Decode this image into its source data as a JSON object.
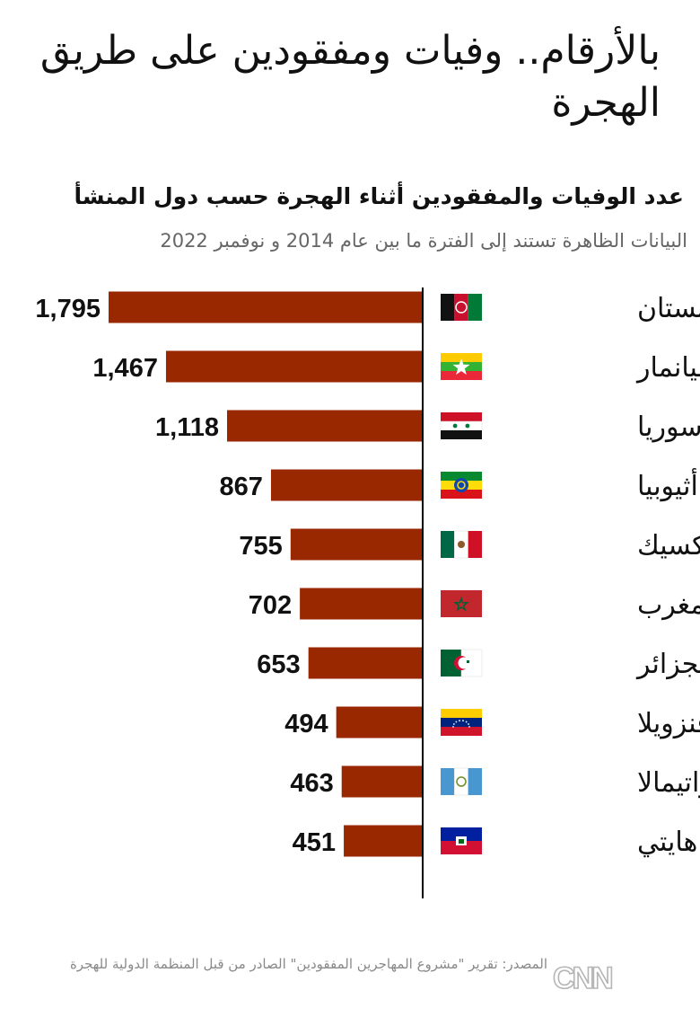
{
  "title": "بالأرقام.. وفيات ومفقودين على طريق الهجرة",
  "subtitle": "عدد الوفيات والمفقودين أثناء الهجرة حسب دول المنشأ",
  "note": "البيانات الظاهرة تستند إلى الفترة ما بين عام 2014 و نوفمبر 2022",
  "source": "المصدر: تقرير \"مشروع المهاجرين المفقودين\" الصادر من قبل المنظمة الدولية للهجرة",
  "logo": {
    "text": "CNN بالعربية",
    "icon": "cnn-arabic-logo-icon"
  },
  "colors": {
    "bar": "#992800",
    "axis": "#000000",
    "text": "#111111",
    "muted": "#8a8a8a"
  },
  "chart_data": {
    "type": "bar",
    "orientation": "horizontal",
    "categories": [
      "أفغانستان",
      "ميانمار",
      "سوريا",
      "أثيوبيا",
      "المكسيك",
      "المغرب",
      "الجزائر",
      "فنزويلا",
      "غواتيمالا",
      "هايتي"
    ],
    "values": [
      1795,
      1467,
      1118,
      867,
      755,
      702,
      653,
      494,
      463,
      451
    ],
    "value_labels": [
      "1,795",
      "1,467",
      "1,118",
      "867",
      "755",
      "702",
      "653",
      "494",
      "463",
      "451"
    ],
    "flags": [
      "afghanistan-flag-icon",
      "myanmar-flag-icon",
      "syria-flag-icon",
      "ethiopia-flag-icon",
      "mexico-flag-icon",
      "morocco-flag-icon",
      "algeria-flag-icon",
      "venezuela-flag-icon",
      "guatemala-flag-icon",
      "haiti-flag-icon"
    ],
    "xlim": [
      0,
      1795
    ],
    "grid": false,
    "bar_direction": "right-to-left"
  }
}
